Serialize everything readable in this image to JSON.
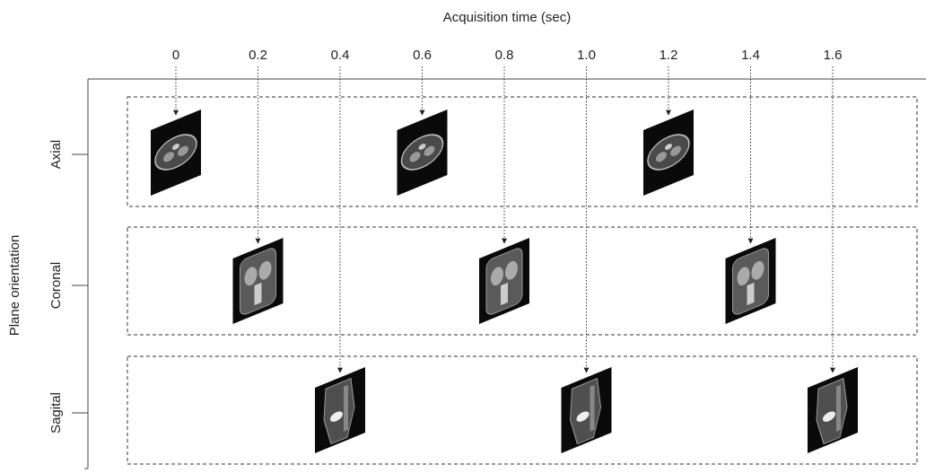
{
  "x_axis": {
    "title": "Acquisition time (sec)",
    "ticks": [
      "0",
      "0.2",
      "0.4",
      "0.6",
      "0.8",
      "1.0",
      "1.2",
      "1.4",
      "1.6"
    ]
  },
  "y_axis": {
    "title": "Plane orientation",
    "rows": [
      "Axial",
      "Coronal",
      "Sagital"
    ]
  }
}
